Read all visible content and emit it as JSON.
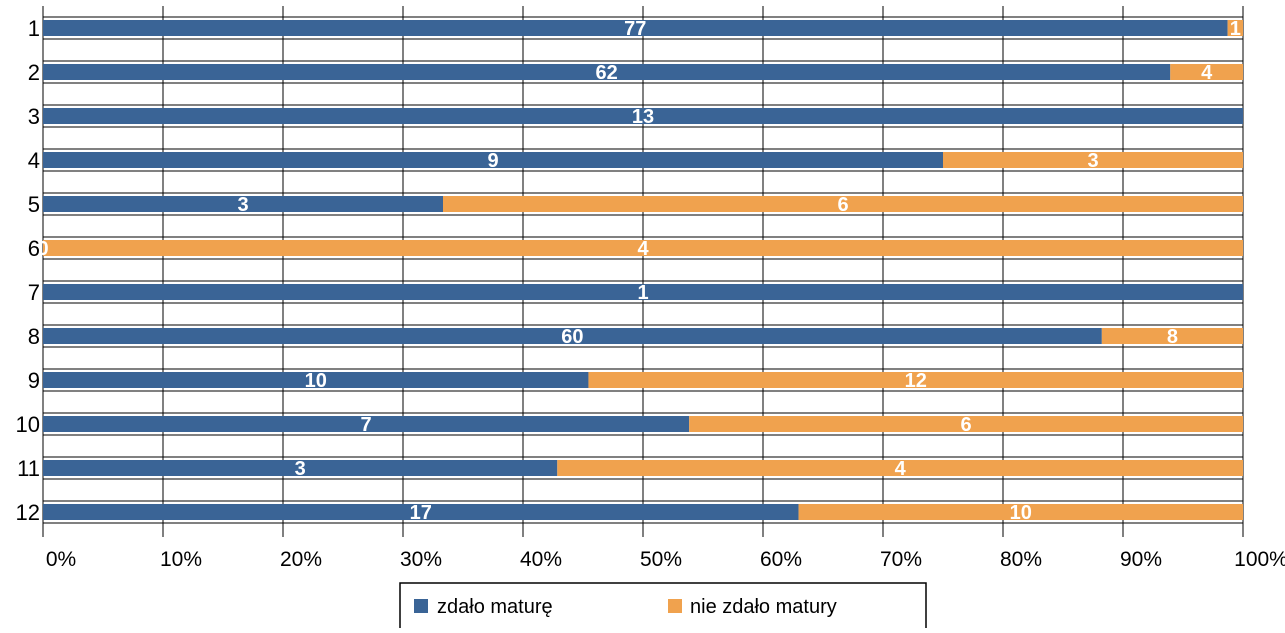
{
  "chart_data": {
    "type": "bar",
    "orientation": "horizontal",
    "stacked": "percent",
    "categories": [
      "1",
      "2",
      "3",
      "4",
      "5",
      "6",
      "7",
      "8",
      "9",
      "10",
      "11",
      "12"
    ],
    "series": [
      {
        "name": "zdało maturę",
        "color": "#3a6496",
        "values": [
          77,
          62,
          13,
          9,
          3,
          0,
          1,
          60,
          10,
          7,
          3,
          17
        ]
      },
      {
        "name": "nie zdało matury",
        "color": "#f0a24e",
        "values": [
          1,
          4,
          0,
          3,
          6,
          4,
          0,
          8,
          12,
          6,
          4,
          10
        ]
      }
    ],
    "data_labels": [
      [
        "77",
        "1"
      ],
      [
        "62",
        "4"
      ],
      [
        "13",
        ""
      ],
      [
        "9",
        "3"
      ],
      [
        "3",
        "6"
      ],
      [
        "0",
        "4"
      ],
      [
        "1",
        ""
      ],
      [
        "60",
        "8"
      ],
      [
        "10",
        "12"
      ],
      [
        "7",
        "6"
      ],
      [
        "3",
        "4"
      ],
      [
        "17",
        "10"
      ]
    ],
    "xticks": [
      "0%",
      "10%",
      "20%",
      "30%",
      "40%",
      "50%",
      "60%",
      "70%",
      "80%",
      "90%",
      "100%"
    ],
    "xlim": [
      0,
      100
    ],
    "grid": true,
    "legend": "bottom",
    "title": "",
    "xlabel": "",
    "ylabel": ""
  }
}
